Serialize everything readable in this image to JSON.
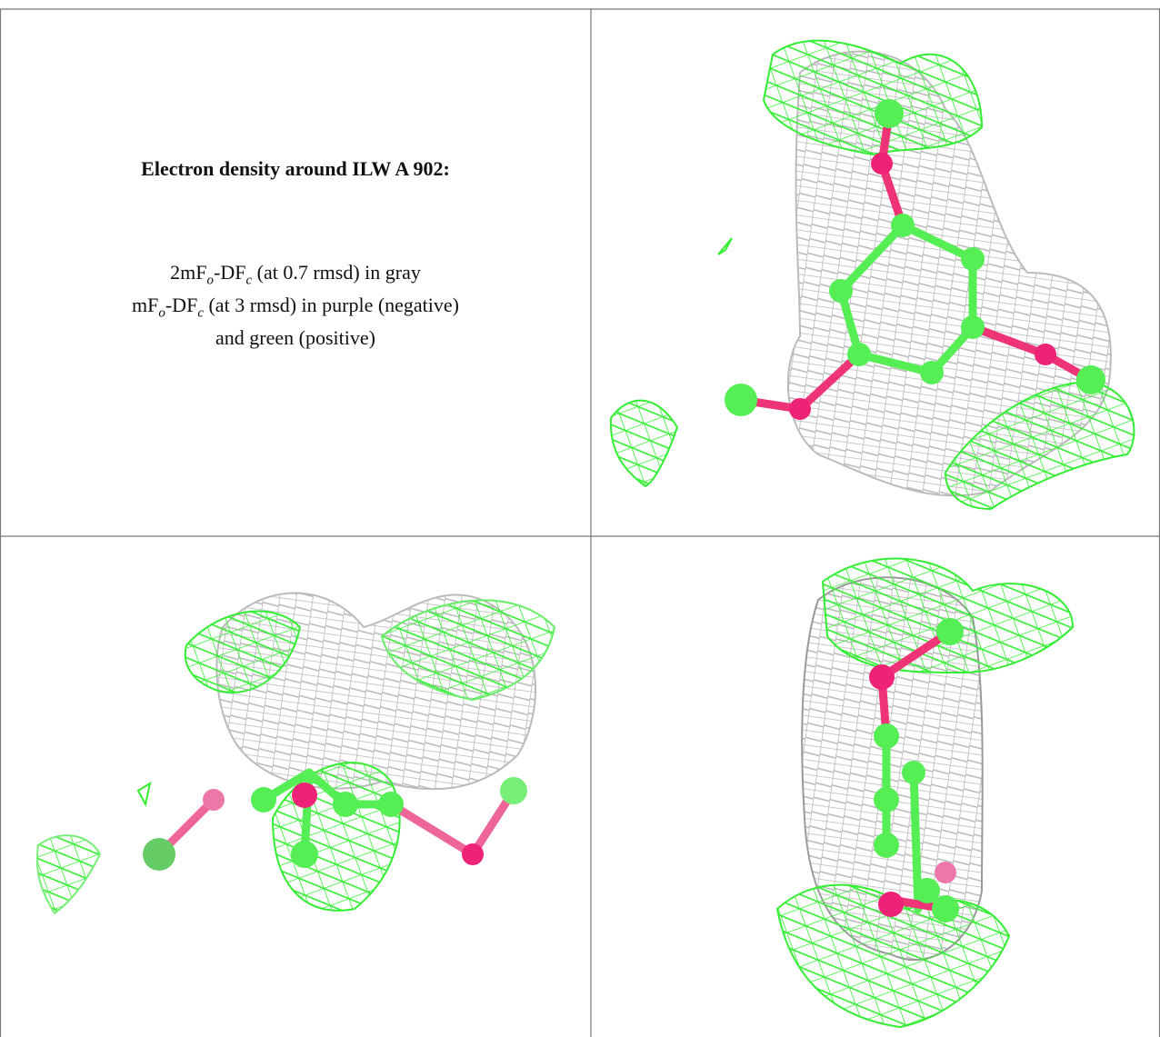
{
  "header": {
    "title": "Electron density around ILW A 902:"
  },
  "legend": {
    "lines": [
      {
        "parts": [
          "2mF",
          "o",
          "-DF",
          "c",
          " (at 0.7 rmsd) in gray"
        ]
      },
      {
        "parts": [
          "mF",
          "o",
          "-DF",
          "c",
          " (at 3 rmsd) in purple (negative)"
        ]
      },
      {
        "parts": [
          "and green (positive)"
        ]
      }
    ]
  }
}
